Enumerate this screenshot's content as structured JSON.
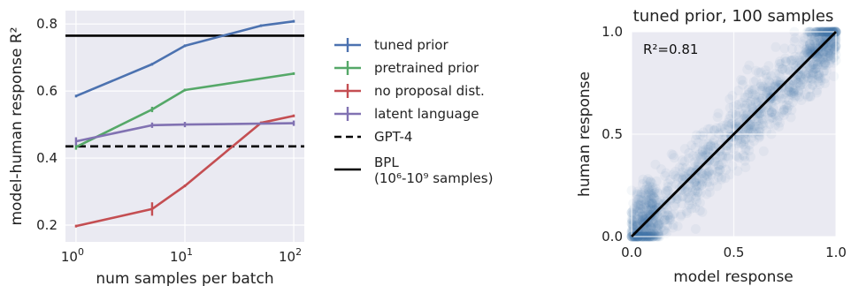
{
  "chart_data": [
    {
      "type": "line",
      "xscale": "log",
      "xlabel": "num samples per batch",
      "ylabel": "model-human response R²",
      "xlim": [
        0.8,
        125
      ],
      "ylim": [
        0.15,
        0.84
      ],
      "grid": true,
      "xticks": [
        {
          "value": 1,
          "base": "10",
          "exp": "0"
        },
        {
          "value": 10,
          "base": "10",
          "exp": "1"
        },
        {
          "value": 100,
          "base": "10",
          "exp": "2"
        }
      ],
      "yticks": [
        {
          "value": 0.2,
          "label": "0.2"
        },
        {
          "value": 0.4,
          "label": "0.4"
        },
        {
          "value": 0.6,
          "label": "0.6"
        },
        {
          "value": 0.8,
          "label": "0.8"
        }
      ],
      "series": [
        {
          "name": "tuned prior",
          "color": "#4c72b0",
          "x": [
            1,
            5,
            10,
            50,
            100
          ],
          "y": [
            0.585,
            0.68,
            0.735,
            0.795,
            0.808
          ],
          "err": [
            0.004,
            0.004,
            0.004,
            0.004,
            0.004
          ]
        },
        {
          "name": "pretrained prior",
          "color": "#55a868",
          "x": [
            1,
            5,
            10,
            100
          ],
          "y": [
            0.433,
            0.545,
            0.603,
            0.652
          ],
          "err": [
            0.008,
            0.008,
            0.004,
            0.004
          ]
        },
        {
          "name": "no proposal dist.",
          "color": "#c44e52",
          "x": [
            1,
            5,
            10,
            50,
            100
          ],
          "y": [
            0.197,
            0.248,
            0.317,
            0.505,
            0.526
          ],
          "err": [
            0.004,
            0.02,
            0.004,
            0.004,
            0.004
          ]
        },
        {
          "name": "latent language",
          "color": "#8172b2",
          "x": [
            1,
            5,
            10,
            100
          ],
          "y": [
            0.45,
            0.498,
            0.5,
            0.504
          ],
          "err": [
            0.012,
            0.008,
            0.008,
            0.008
          ]
        }
      ],
      "hlines": [
        {
          "name": "GPT-4",
          "y": 0.435,
          "color": "#000000",
          "style": "dashed"
        },
        {
          "name": "BPL",
          "name_line2": "(10⁶-10⁹ samples)",
          "y": 0.765,
          "color": "#000000",
          "style": "solid"
        }
      ],
      "legend": "right-outside"
    },
    {
      "type": "scatter",
      "title": "tuned prior, 100 samples",
      "xlabel": "model response",
      "ylabel": "human response",
      "xlim": [
        0,
        1
      ],
      "ylim": [
        0,
        1
      ],
      "grid": true,
      "xticks": [
        {
          "value": 0,
          "label": "0.0"
        },
        {
          "value": 0.5,
          "label": "0.5"
        },
        {
          "value": 1,
          "label": "1.0"
        }
      ],
      "yticks": [
        {
          "value": 0,
          "label": "0.0"
        },
        {
          "value": 0.5,
          "label": "0.5"
        },
        {
          "value": 1,
          "label": "1.0"
        }
      ],
      "annotation": "R²=0.81",
      "reference_line": {
        "from": [
          0,
          0
        ],
        "to": [
          1,
          1
        ],
        "color": "#000000"
      },
      "point_color": "#4c72b0",
      "density_trend": [
        [
          0.02,
          0.04
        ],
        [
          0.1,
          0.12
        ],
        [
          0.2,
          0.2
        ],
        [
          0.3,
          0.3
        ],
        [
          0.4,
          0.4
        ],
        [
          0.5,
          0.5
        ],
        [
          0.6,
          0.6
        ],
        [
          0.7,
          0.7
        ],
        [
          0.8,
          0.8
        ],
        [
          0.9,
          0.9
        ],
        [
          0.98,
          0.98
        ]
      ]
    }
  ]
}
